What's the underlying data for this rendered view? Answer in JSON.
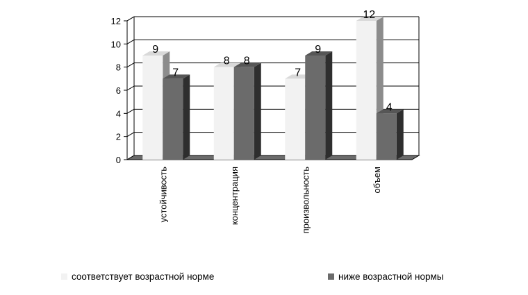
{
  "chart_data": {
    "type": "bar",
    "categories": [
      "устойчивость",
      "концентрация",
      "произвольность",
      "объем"
    ],
    "series": [
      {
        "name": "соответствует возрастной норме",
        "values": [
          9,
          8,
          7,
          12
        ]
      },
      {
        "name": "ниже возрастной нормы",
        "values": [
          7,
          8,
          9,
          4
        ]
      }
    ],
    "yticks": [
      "0",
      "2",
      "4",
      "6",
      "8",
      "10",
      "12"
    ],
    "ylim": [
      0,
      12
    ],
    "grid": true,
    "legend": "bottom",
    "style": "3d-clustered-bar",
    "colors": {
      "series1": "#f2f2f2",
      "series2": "#6b6b6b",
      "gridline": "#000000",
      "floor": "#6b6b6b"
    }
  }
}
